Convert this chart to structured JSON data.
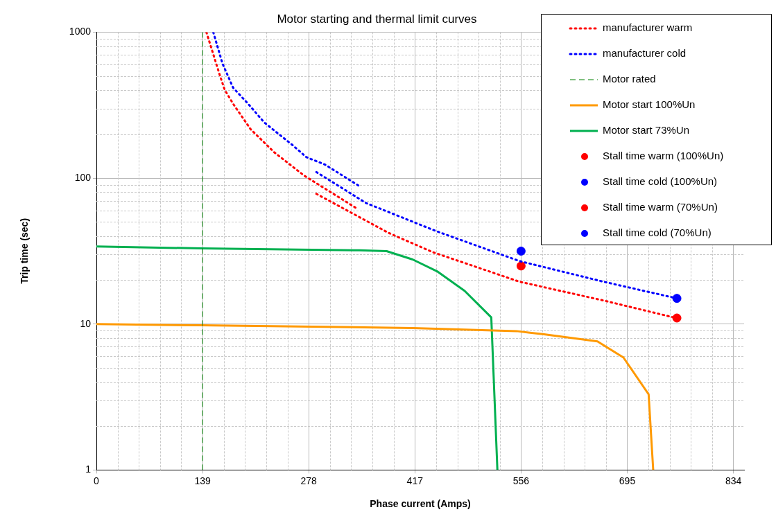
{
  "chart_data": {
    "type": "line",
    "title": "Motor starting and thermal limit curves",
    "xlabel": "Phase current (Amps)",
    "ylabel": "Trip time (sec)",
    "xlim": [
      0,
      848
    ],
    "xticks": [
      0,
      139,
      278,
      417,
      556,
      695,
      834
    ],
    "ylim": [
      1,
      1000
    ],
    "yticks": [
      1,
      10,
      100,
      1000
    ],
    "log": "y",
    "grid": true,
    "legend": "top right",
    "series": [
      {
        "name": "manufacturer warm",
        "color": "#ff0000",
        "type": "line",
        "line_style": "dotted",
        "marker": "none",
        "x": [
          144,
          161,
          168,
          179,
          202,
          233,
          272,
          343,
          null,
          288,
          383,
          441,
          554,
          664,
          759
        ],
        "values": [
          1000,
          518,
          402,
          323,
          216,
          150,
          104,
          61,
          null,
          78,
          42,
          31,
          19.5,
          14.5,
          11
        ]
      },
      {
        "name": "manufacturer cold",
        "color": "#0000ff",
        "type": "line",
        "line_style": "dotted",
        "marker": "none",
        "x": [
          153,
          165,
          179,
          197,
          220,
          257,
          275,
          299,
          343,
          null,
          288,
          353,
          444,
          554,
          664,
          760
        ],
        "values": [
          1000,
          611,
          416,
          330,
          240,
          168,
          139,
          124,
          89,
          null,
          110,
          67.5,
          43.5,
          27,
          19.5,
          15
        ]
      },
      {
        "name": "Motor rated",
        "color": "#008000",
        "type": "line",
        "line_style": "dashed",
        "marker": "none",
        "x": [
          139,
          139
        ],
        "values": [
          1,
          1000
        ]
      },
      {
        "name": "Motor start 100%Un",
        "color": "#ff9900",
        "type": "line",
        "line_style": "solid",
        "marker": "none",
        "x": [
          0,
          137,
          414,
          550,
          586,
          656,
          690,
          723,
          729
        ],
        "values": [
          10,
          9.8,
          9.4,
          8.95,
          8.5,
          7.6,
          5.9,
          3.3,
          1
        ]
      },
      {
        "name": "Motor start 73%Un",
        "color": "#00b050",
        "type": "line",
        "line_style": "solid",
        "marker": "none",
        "x": [
          0,
          137,
          344,
          380,
          414,
          446,
          482,
          517,
          525
        ],
        "values": [
          34,
          33,
          32,
          31.6,
          27.7,
          23,
          16.9,
          11.1,
          1
        ]
      },
      {
        "name": "Stall time warm (100%Un)",
        "color": "#ff0000",
        "type": "scatter",
        "marker": "circle",
        "x": [
          760
        ],
        "values": [
          11
        ]
      },
      {
        "name": "Stall time cold (100%Un)",
        "color": "#0000ff",
        "type": "scatter",
        "marker": "circle",
        "x": [
          760
        ],
        "values": [
          15
        ]
      },
      {
        "name": "Stall time warm (70%Un)",
        "color": "#ff0000",
        "type": "scatter",
        "marker": "circle",
        "x": [
          556
        ],
        "values": [
          25
        ]
      },
      {
        "name": "Stall time cold (70%Un)",
        "color": "#0000ff",
        "type": "scatter",
        "marker": "circle",
        "x": [
          556
        ],
        "values": [
          31.6
        ]
      }
    ]
  }
}
